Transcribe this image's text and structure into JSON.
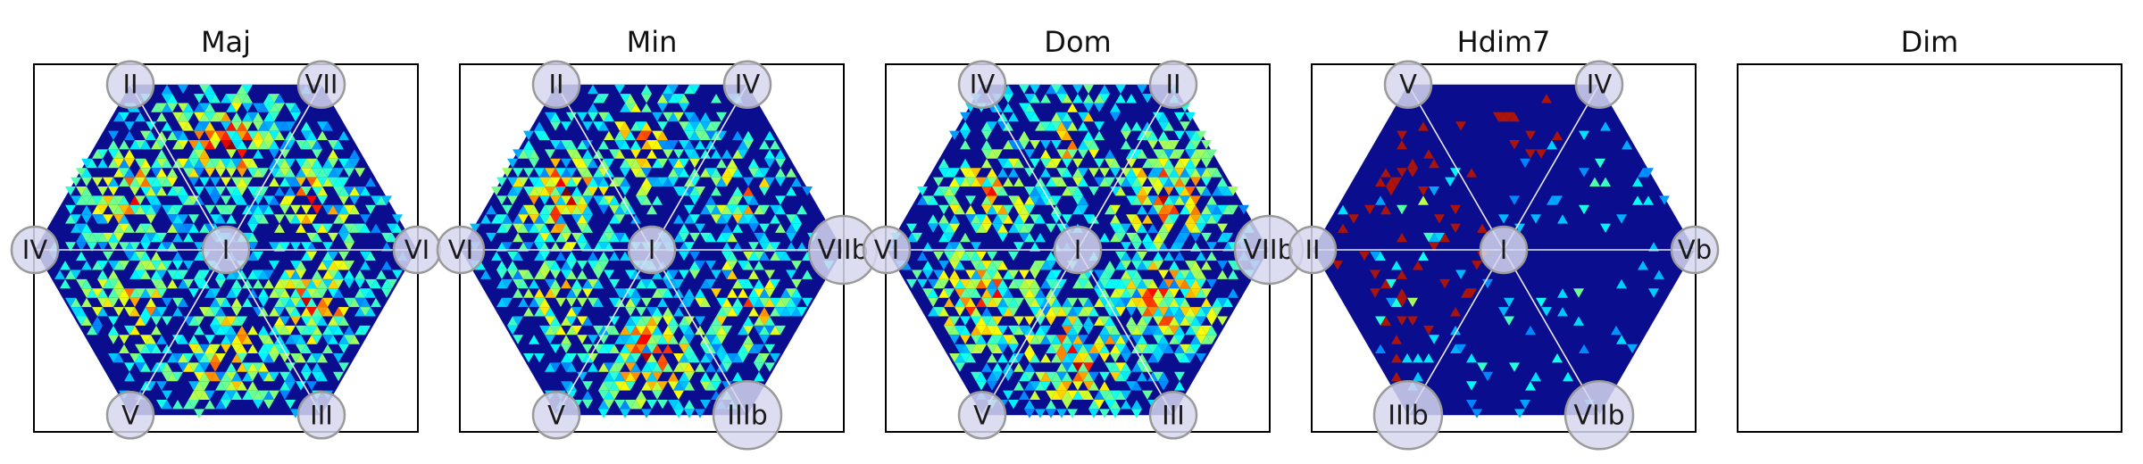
{
  "chart_data": [
    {
      "type": "heatmap",
      "title": "Maj",
      "colormap": "jet",
      "center_label": "I",
      "vertex_labels": [
        "VI",
        "VII",
        "II",
        "IV",
        "V",
        "III"
      ],
      "large_nodes": [],
      "sector_intensity": [
        0.55,
        0.7,
        0.6,
        0.5,
        0.6,
        0.65
      ],
      "hot_sector_tint": null
    },
    {
      "type": "heatmap",
      "title": "Min",
      "colormap": "jet",
      "center_label": "I",
      "vertex_labels": [
        "VIIb",
        "IV",
        "II",
        "VI",
        "V",
        "IIIb"
      ],
      "large_nodes": [
        "VIIb",
        "IIIb"
      ],
      "sector_intensity": [
        0.45,
        0.55,
        0.7,
        0.45,
        0.7,
        0.55
      ],
      "hot_sector_tint": null
    },
    {
      "type": "heatmap",
      "title": "Dom",
      "colormap": "jet",
      "center_label": "I",
      "vertex_labels": [
        "VIIb",
        "II",
        "IV",
        "VI",
        "V",
        "III"
      ],
      "large_nodes": [
        "VIIb"
      ],
      "sector_intensity": [
        0.7,
        0.5,
        0.55,
        0.7,
        0.75,
        0.7
      ],
      "hot_sector_tint": null
    },
    {
      "type": "heatmap",
      "title": "Hdim7",
      "colormap": "jet",
      "center_label": "I",
      "vertex_labels": [
        "Vb",
        "IV",
        "V",
        "II",
        "IIIb",
        "VIIb"
      ],
      "large_nodes": [
        "IIIb",
        "VIIb"
      ],
      "sector_intensity": [
        0.08,
        0.1,
        0.12,
        0.14,
        0.1,
        0.08
      ],
      "hot_sector_tint": [
        1,
        2,
        3
      ]
    },
    {
      "type": "heatmap",
      "title": "Dim",
      "colormap": "jet",
      "center_label": "",
      "vertex_labels": [],
      "large_nodes": [],
      "sector_intensity": [],
      "hot_sector_tint": null,
      "empty": true
    }
  ]
}
